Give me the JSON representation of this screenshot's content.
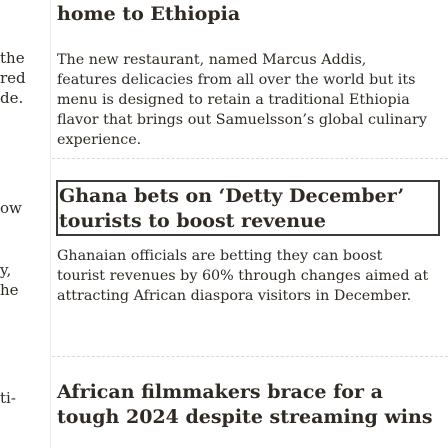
{
  "left_column": {
    "fragments": [
      "the",
      "red",
      "de.",
      "ow",
      "y,",
      "he",
      "ti-"
    ]
  },
  "articles": [
    {
      "headline": "home to Ethiopia",
      "summary": "The new restaurant, named Marcus Addis, features delicacies from all over the world but its menu is designed to retain a traditional Ethiopia flavor that brings out Samuelsson’s global culinary experience."
    },
    {
      "headline": "Ghana bets on ‘Detty December’ tourists to boost revenue",
      "summary": "Ghanaian officials are betting they can boost tourist revenues by 60% through changes aimed at attracting African diaspora visitors in December."
    },
    {
      "headline": "African filmmakers brace for a tough 2024 despite streaming wins",
      "summary": ""
    }
  ]
}
